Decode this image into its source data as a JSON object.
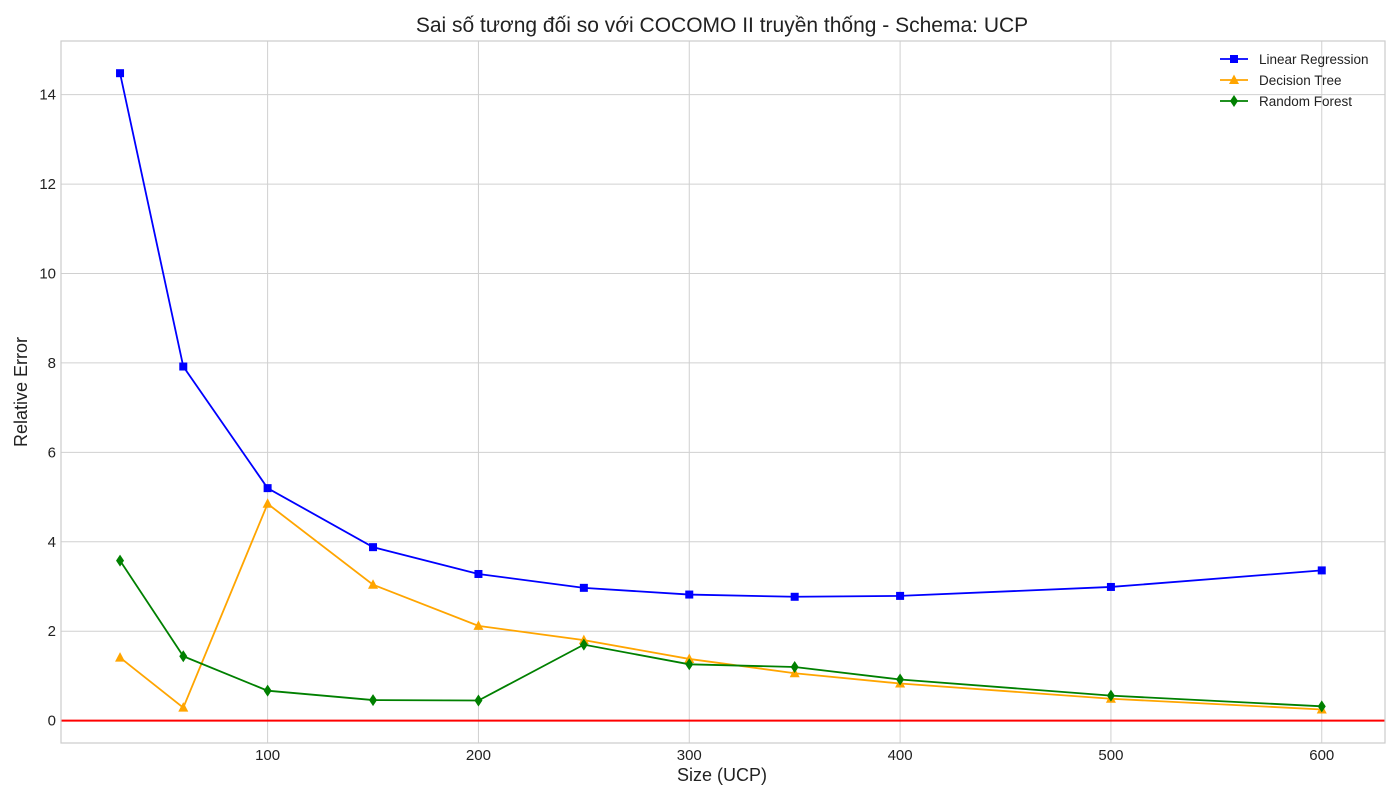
{
  "chart_data": {
    "type": "line",
    "title": "Sai số tương đối so với COCOMO II truyền thống - Schema: UCP",
    "xlabel": "Size (UCP)",
    "ylabel": "Relative Error",
    "xlim": [
      2,
      630
    ],
    "ylim": [
      -0.5,
      15.2
    ],
    "xticks": [
      100,
      200,
      300,
      400,
      500,
      600
    ],
    "yticks": [
      0,
      2,
      4,
      6,
      8,
      10,
      12,
      14
    ],
    "grid": true,
    "legend_position": "top-right",
    "reference_line": {
      "y": 0,
      "color": "#ff0000"
    },
    "x": [
      30,
      60,
      100,
      150,
      200,
      250,
      300,
      350,
      400,
      500,
      600
    ],
    "series": [
      {
        "name": "Linear Regression",
        "color": "#0000ff",
        "marker": "square",
        "x": [
          30,
          60,
          100,
          150,
          200,
          250,
          300,
          350,
          400,
          500,
          600
        ],
        "values": [
          14.48,
          7.92,
          5.2,
          3.88,
          3.28,
          2.97,
          2.82,
          2.77,
          2.79,
          2.99,
          3.36
        ]
      },
      {
        "name": "Decision Tree",
        "color": "#ffa500",
        "marker": "triangle",
        "x": [
          30,
          60,
          100,
          150,
          200,
          250,
          300,
          350,
          400,
          500,
          600
        ],
        "values": [
          1.41,
          0.29,
          4.85,
          3.04,
          2.12,
          1.8,
          1.38,
          1.06,
          0.83,
          0.49,
          0.25
        ]
      },
      {
        "name": "Random Forest",
        "color": "#008000",
        "marker": "diamond",
        "x": [
          30,
          60,
          100,
          150,
          200,
          250,
          300,
          350,
          400,
          500,
          600
        ],
        "values": [
          3.58,
          1.44,
          0.67,
          0.46,
          0.45,
          1.7,
          1.26,
          1.2,
          0.92,
          0.56,
          0.32
        ]
      }
    ]
  }
}
